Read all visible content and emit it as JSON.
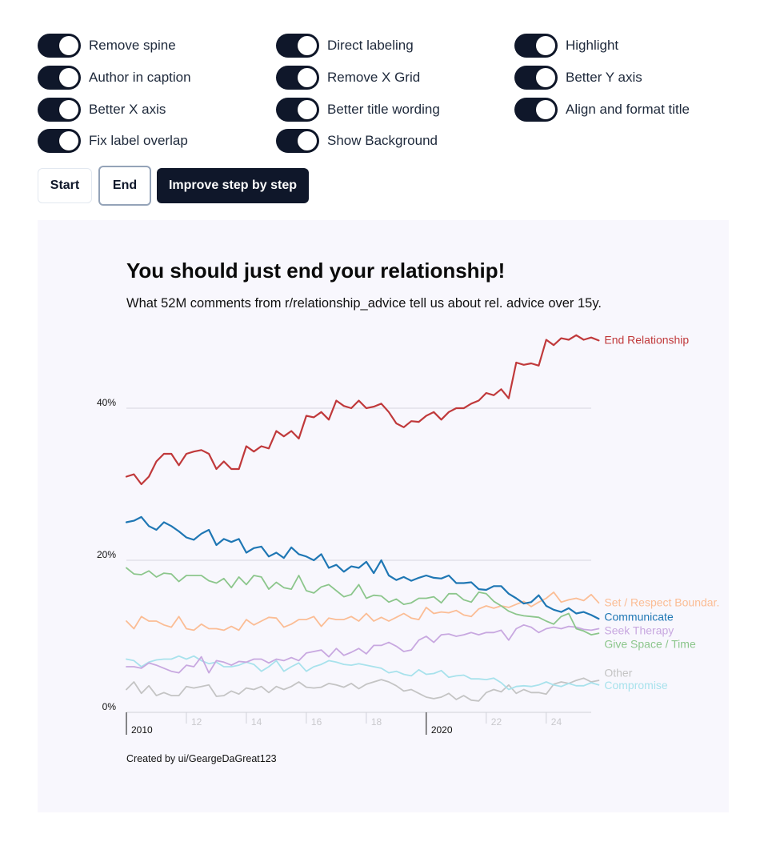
{
  "toggles": [
    {
      "label": "Remove spine",
      "on": true
    },
    {
      "label": "Author in caption",
      "on": true
    },
    {
      "label": "Better X axis",
      "on": true
    },
    {
      "label": "Fix label overlap",
      "on": true
    },
    {
      "label": "Direct labeling",
      "on": true
    },
    {
      "label": "Remove X Grid",
      "on": true
    },
    {
      "label": "Better title wording",
      "on": true
    },
    {
      "label": "Show Background",
      "on": true
    },
    {
      "label": "Highlight",
      "on": true
    },
    {
      "label": "Better Y axis",
      "on": true
    },
    {
      "label": "Align and format title",
      "on": true
    }
  ],
  "buttons": {
    "start": "Start",
    "end": "End",
    "improve": "Improve step by step"
  },
  "chart_data": {
    "type": "line",
    "title": "You should just end your relationship!",
    "subtitle": "What 52M comments from r/relationship_advice tell us about rel. advice over 15y.",
    "caption": "Created by ui/GeargeDaGreat123",
    "xlabel": "",
    "ylabel": "",
    "xlim": [
      2010,
      2025.5
    ],
    "ylim": [
      0,
      50
    ],
    "yticks": [
      {
        "value": 0,
        "label": "0%"
      },
      {
        "value": 20,
        "label": "20%"
      },
      {
        "value": 40,
        "label": "40%"
      }
    ],
    "xticks": [
      {
        "value": 2010,
        "label": "2010",
        "major": true
      },
      {
        "value": 2012,
        "label": "12",
        "major": false
      },
      {
        "value": 2014,
        "label": "14",
        "major": false
      },
      {
        "value": 2016,
        "label": "16",
        "major": false
      },
      {
        "value": 2018,
        "label": "18",
        "major": false
      },
      {
        "value": 2020,
        "label": "2020",
        "major": true
      },
      {
        "value": 2022,
        "label": "22",
        "major": false
      },
      {
        "value": 2024,
        "label": "24",
        "major": false
      }
    ],
    "x_start": 2010,
    "x_step": 0.25,
    "series": [
      {
        "name": "End Relationship",
        "color": "#c0393b",
        "values": [
          31,
          31.3,
          30,
          31,
          33,
          34,
          34,
          32.5,
          34,
          34.3,
          34.5,
          34,
          32,
          33,
          32,
          32,
          35,
          34.3,
          35,
          34.7,
          37,
          36.3,
          37,
          36,
          39,
          38.8,
          39.5,
          38.5,
          41,
          40.3,
          40,
          41,
          40,
          40.2,
          40.6,
          39.5,
          38,
          37.5,
          38.3,
          38.2,
          39,
          39.5,
          38.5,
          39.5,
          40,
          40,
          40.6,
          41,
          42,
          41.7,
          42.5,
          41.3,
          46,
          45.7,
          45.9,
          45.6,
          49,
          48.3,
          49.2,
          49,
          49.6,
          49,
          49.3,
          48.9
        ]
      },
      {
        "name": "Communicate",
        "color": "#1f77b4",
        "values": [
          25,
          25.2,
          25.7,
          24.5,
          24,
          25,
          24.5,
          23.8,
          23,
          22.7,
          23.5,
          24,
          22,
          22.8,
          22.4,
          22.8,
          21,
          21.6,
          21.8,
          20.5,
          21,
          20.3,
          21.7,
          20.8,
          20.5,
          20,
          20.8,
          19,
          19.4,
          18.5,
          19.2,
          19,
          19.8,
          18.3,
          20,
          18,
          17.4,
          17.8,
          17.3,
          17.7,
          18,
          17.7,
          17.6,
          18,
          17,
          17,
          17.1,
          16.2,
          16.1,
          16.6,
          16.6,
          15.6,
          15,
          14.3,
          14.5,
          15.4,
          14,
          13.5,
          13.2,
          13.7,
          13,
          13.2,
          12.8,
          12.3
        ]
      },
      {
        "name": "Give Space / Time",
        "color": "#8cc68c",
        "values": [
          19,
          18.2,
          18.1,
          18.6,
          17.8,
          18.3,
          18.2,
          17.2,
          18,
          18,
          18,
          17.3,
          17,
          17.6,
          16.4,
          17.8,
          16.8,
          18,
          17.8,
          16.2,
          17.1,
          16.4,
          16.2,
          18,
          16,
          15.7,
          16.5,
          16.8,
          16,
          15.2,
          15.5,
          16.8,
          15,
          15.4,
          15.3,
          14.5,
          14.9,
          14.2,
          14.4,
          15,
          15,
          15.2,
          14.4,
          15.6,
          15.6,
          14.8,
          14.5,
          15.8,
          15.6,
          14.6,
          14,
          13.3,
          12.9,
          12.7,
          12.6,
          12.5,
          12,
          11.6,
          12.6,
          13,
          11,
          10.7,
          10.2,
          10.4
        ]
      },
      {
        "name": "Set / Respect Boundar.",
        "color": "#fbbd95",
        "values": [
          12,
          11,
          12.6,
          12,
          12,
          11.5,
          11.2,
          12.6,
          11,
          10.8,
          11.6,
          11,
          11,
          10.8,
          11.3,
          10.8,
          12.2,
          11.5,
          12,
          12.5,
          12.4,
          11.2,
          11.6,
          12.2,
          12.2,
          12.6,
          11.3,
          12.4,
          12.2,
          12.2,
          12.6,
          12,
          13,
          12,
          12.5,
          12,
          12.5,
          13,
          12.4,
          12.2,
          13.8,
          13,
          13.2,
          13.1,
          13.4,
          12.8,
          12.6,
          13.6,
          14,
          13.7,
          14,
          13.8,
          14.2,
          14.6,
          13.9,
          14.5,
          15,
          15.8,
          14.5,
          14.8,
          15,
          14.7,
          15.5,
          14.4
        ]
      },
      {
        "name": "Seek Therapy",
        "color": "#c8a8e0",
        "values": [
          6,
          6,
          5.8,
          6.5,
          6.2,
          5.8,
          5.4,
          5.2,
          6.2,
          6,
          7.3,
          5.2,
          6.8,
          6.6,
          6.2,
          6.7,
          6.6,
          7,
          7,
          6.5,
          7,
          6.8,
          7.2,
          6.8,
          7.8,
          8,
          8.2,
          7.3,
          8.4,
          7.5,
          7.9,
          8.4,
          7.7,
          8.8,
          8.8,
          9.2,
          8.7,
          8,
          8.2,
          9.5,
          10,
          9.2,
          10.2,
          10.3,
          10,
          10.2,
          10.5,
          10.2,
          10.5,
          10.5,
          10.8,
          9.5,
          11,
          11.5,
          11.2,
          10.5,
          11,
          11.2,
          11,
          11.3,
          11.2,
          10.9,
          10.8,
          11
        ]
      },
      {
        "name": "Other",
        "color": "#c4c4c4",
        "values": [
          3,
          4,
          2.5,
          3.5,
          2.2,
          2.6,
          2.2,
          2.2,
          3.4,
          3.2,
          3.4,
          3.6,
          2.1,
          2.2,
          2.8,
          2.4,
          3.2,
          3,
          3.4,
          2.6,
          3.4,
          3,
          3.4,
          4,
          3.3,
          3.2,
          3.3,
          3.8,
          3.6,
          3.3,
          3.8,
          3.1,
          3.7,
          4,
          4.3,
          4,
          3.5,
          2.8,
          3,
          2.5,
          2,
          1.8,
          2,
          2.5,
          1.7,
          2.2,
          1.6,
          1.5,
          2.6,
          3,
          2.7,
          3.6,
          2.5,
          3,
          2.6,
          2.6,
          2.4,
          3.7,
          4,
          3.8,
          4.2,
          4.5,
          4,
          4.2
        ]
      },
      {
        "name": "Compromise",
        "color": "#a8e2ec",
        "values": [
          7,
          6.8,
          6,
          6.6,
          6.9,
          7,
          7,
          7.4,
          7,
          7.4,
          6.8,
          6.4,
          6.6,
          6,
          6,
          6.2,
          6.6,
          6.3,
          5.4,
          6,
          6.8,
          5.4,
          6,
          6.5,
          5.4,
          6,
          6.3,
          6.8,
          6.6,
          6.3,
          6.2,
          6.4,
          6.2,
          6,
          5.8,
          5.2,
          5.4,
          5,
          4.8,
          5.6,
          5,
          5.1,
          5.5,
          4.6,
          4.8,
          4.9,
          4.4,
          4.4,
          4.3,
          4.5,
          3.9,
          3,
          3.4,
          3.5,
          3.4,
          3.6,
          4,
          3.6,
          3.4,
          3.8,
          3.5,
          3.5,
          3.9,
          3.6
        ]
      }
    ],
    "end_labels": [
      {
        "name": "End Relationship",
        "text": "End Relationship",
        "color": "#c0393b",
        "label_value": 49
      },
      {
        "name": "Set / Respect Boundar.",
        "text": "Set / Respect Boundar.",
        "color": "#fbbd95",
        "label_value": 14.5
      },
      {
        "name": "Communicate",
        "text": "Communicate",
        "color": "#1f77b4",
        "label_value": 12.6
      },
      {
        "name": "Seek Therapy",
        "text": "Seek Therapy",
        "color": "#c8a8e0",
        "label_value": 10.8
      },
      {
        "name": "Give Space / Time",
        "text": "Give Space / Time",
        "color": "#8cc68c",
        "label_value": 9.0
      },
      {
        "name": "Other",
        "text": "Other",
        "color": "#c4c4c4",
        "label_value": 5.2
      },
      {
        "name": "Compromise",
        "text": "Compromise",
        "color": "#a8e2ec",
        "label_value": 3.6
      }
    ],
    "grid": true,
    "legend": "direct-labels-right"
  }
}
